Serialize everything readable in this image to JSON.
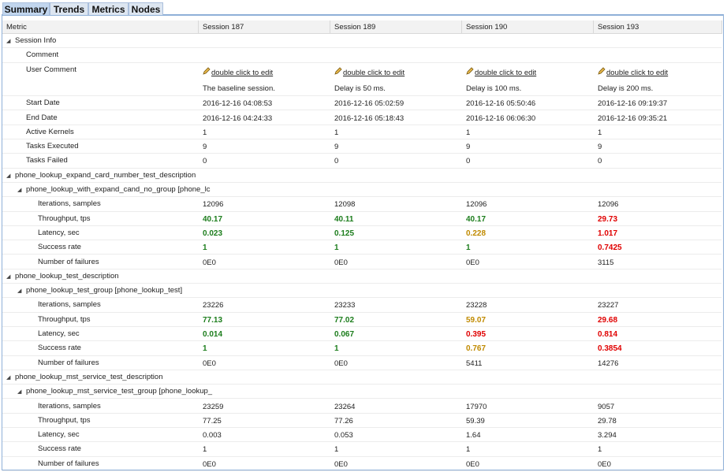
{
  "tabs": [
    "Summary",
    "Trends",
    "Metrics",
    "Nodes"
  ],
  "header": [
    "Metric",
    "Session 187",
    "Session 189",
    "Session 190",
    "Session 193"
  ],
  "session_info": {
    "title": "Session Info",
    "rows": [
      {
        "label": "Comment"
      },
      {
        "label": "User Comment",
        "edit": [
          "double click to edit",
          "double click to edit",
          "double click to edit",
          "double click to edit"
        ],
        "values": [
          "The baseline session.",
          "Delay is 50 ms.",
          "Delay is 100 ms.",
          "Delay is 200 ms."
        ]
      },
      {
        "label": "Start Date",
        "values": [
          "2016-12-16 04:08:53",
          "2016-12-16 05:02:59",
          "2016-12-16 05:50:46",
          "2016-12-16 09:19:37"
        ]
      },
      {
        "label": "End Date",
        "values": [
          "2016-12-16 04:24:33",
          "2016-12-16 05:18:43",
          "2016-12-16 06:06:30",
          "2016-12-16 09:35:21"
        ]
      },
      {
        "label": "Active Kernels",
        "values": [
          "1",
          "1",
          "1",
          "1"
        ]
      },
      {
        "label": "Tasks Executed",
        "values": [
          "9",
          "9",
          "9",
          "9"
        ]
      },
      {
        "label": "Tasks Failed",
        "values": [
          "0",
          "0",
          "0",
          "0"
        ]
      }
    ]
  },
  "groups": [
    {
      "title": "phone_lookup_expand_card_number_test_description",
      "subgroup": {
        "title": "phone_lookup_with_expand_cand_no_group [phone_lc",
        "rows": [
          {
            "label": "Iterations, samples",
            "values": [
              "12096",
              "12098",
              "12096",
              "12096"
            ]
          },
          {
            "label": "Throughput, tps",
            "values": [
              "40.17",
              "40.11",
              "40.17",
              "29.73"
            ],
            "colors": [
              "#1c7d1c",
              "#1c7d1c",
              "#1c7d1c",
              "#e00000"
            ]
          },
          {
            "label": "Latency, sec",
            "values": [
              "0.023",
              "0.125",
              "0.228",
              "1.017"
            ],
            "colors": [
              "#1c7d1c",
              "#1c7d1c",
              "#c08a00",
              "#e00000"
            ]
          },
          {
            "label": "Success rate",
            "values": [
              "1",
              "1",
              "1",
              "0.7425"
            ],
            "colors": [
              "#1c7d1c",
              "#1c7d1c",
              "#1c7d1c",
              "#e00000"
            ]
          },
          {
            "label": "Number of failures",
            "values": [
              "0E0",
              "0E0",
              "0E0",
              "3115"
            ]
          }
        ]
      }
    },
    {
      "title": "phone_lookup_test_description",
      "subgroup": {
        "title": "phone_lookup_test_group [phone_lookup_test]",
        "rows": [
          {
            "label": "Iterations, samples",
            "values": [
              "23226",
              "23233",
              "23228",
              "23227"
            ]
          },
          {
            "label": "Throughput, tps",
            "values": [
              "77.13",
              "77.02",
              "59.07",
              "29.68"
            ],
            "colors": [
              "#1c7d1c",
              "#1c7d1c",
              "#c08a00",
              "#e00000"
            ]
          },
          {
            "label": "Latency, sec",
            "values": [
              "0.014",
              "0.067",
              "0.395",
              "0.814"
            ],
            "colors": [
              "#1c7d1c",
              "#1c7d1c",
              "#e00000",
              "#e00000"
            ]
          },
          {
            "label": "Success rate",
            "values": [
              "1",
              "1",
              "0.767",
              "0.3854"
            ],
            "colors": [
              "#1c7d1c",
              "#1c7d1c",
              "#c08a00",
              "#e00000"
            ]
          },
          {
            "label": "Number of failures",
            "values": [
              "0E0",
              "0E0",
              "5411",
              "14276"
            ]
          }
        ]
      }
    },
    {
      "title": "phone_lookup_mst_service_test_description",
      "subgroup": {
        "title": "phone_lookup_mst_service_test_group [phone_lookup_",
        "rows": [
          {
            "label": "Iterations, samples",
            "values": [
              "23259",
              "23264",
              "17970",
              "9057"
            ]
          },
          {
            "label": "Throughput, tps",
            "values": [
              "77.25",
              "77.26",
              "59.39",
              "29.78"
            ]
          },
          {
            "label": "Latency, sec",
            "values": [
              "0.003",
              "0.053",
              "1.64",
              "3.294"
            ]
          },
          {
            "label": "Success rate",
            "values": [
              "1",
              "1",
              "1",
              "1"
            ]
          },
          {
            "label": "Number of failures",
            "values": [
              "0E0",
              "0E0",
              "0E0",
              "0E0"
            ]
          }
        ]
      }
    }
  ]
}
